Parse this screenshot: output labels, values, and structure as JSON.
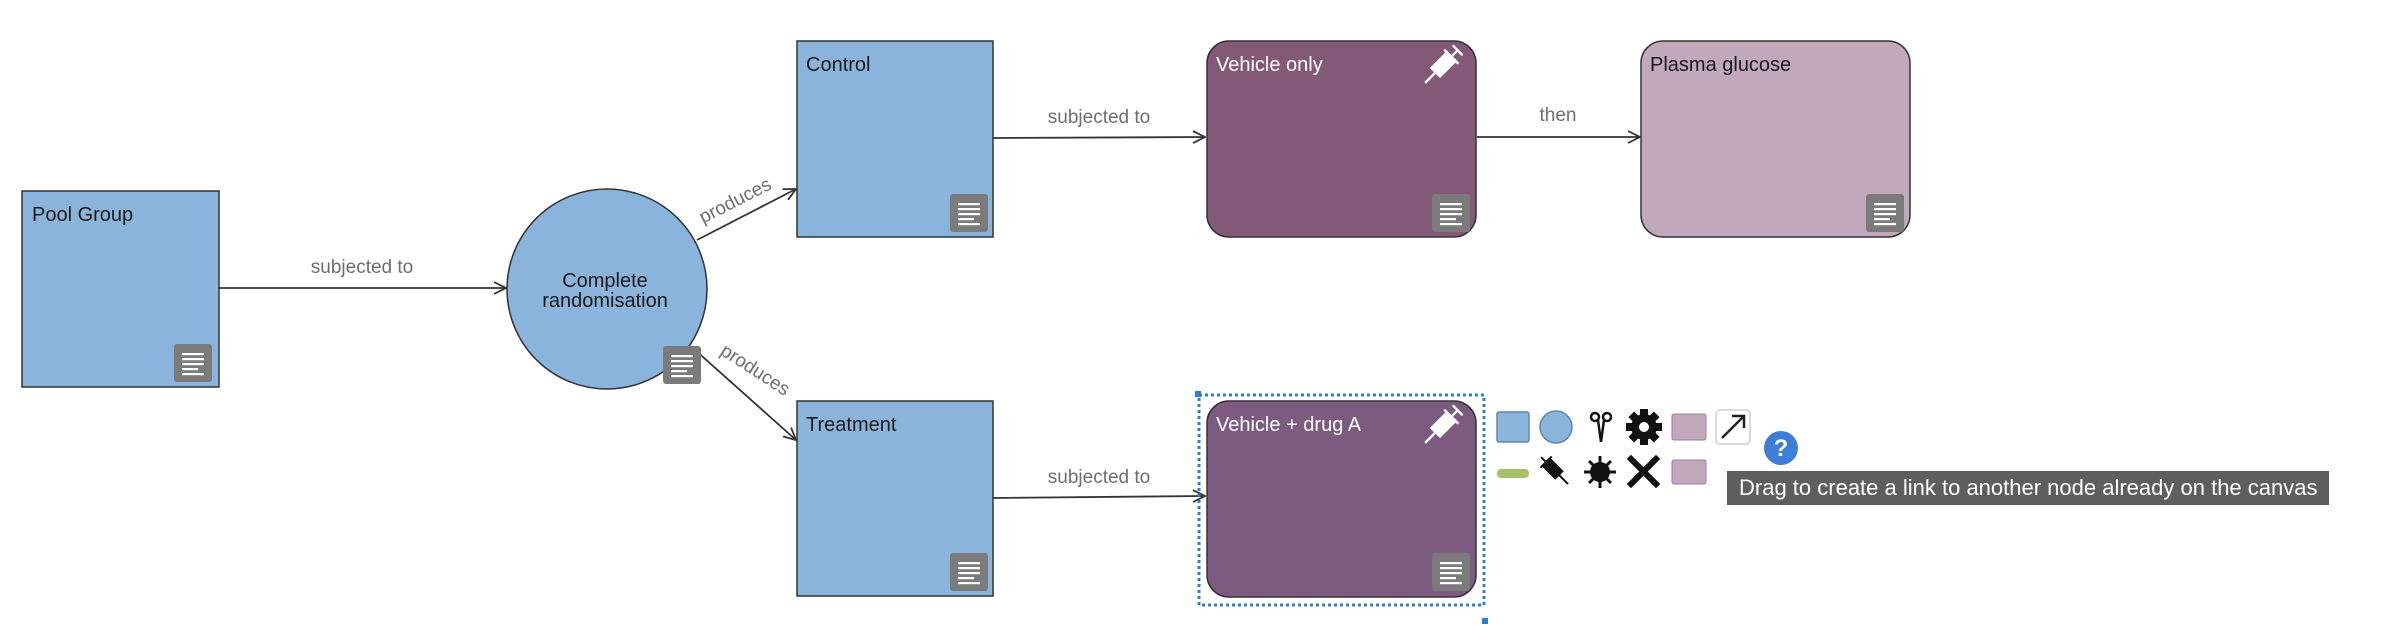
{
  "diagram": {
    "nodes": {
      "pool_group": {
        "title": "Pool Group"
      },
      "complete_randomisation": {
        "title_line1": "Complete",
        "title_line2": "randomisation"
      },
      "control": {
        "title": "Control"
      },
      "treatment": {
        "title": "Treatment"
      },
      "vehicle_only": {
        "title": "Vehicle only"
      },
      "vehicle_drug_a": {
        "title": "Vehicle + drug A"
      },
      "plasma_glucose": {
        "title": "Plasma glucose"
      }
    },
    "edges": {
      "pool_to_randomisation": "subjected to",
      "randomisation_to_control": "produces",
      "randomisation_to_treatment": "produces",
      "control_to_vehicle": "subjected to",
      "treatment_to_vehicle_drug": "subjected to",
      "vehicle_to_glucose": "then"
    }
  },
  "colors": {
    "group_node": "#8ab4dc",
    "intervention_top": "#845877",
    "intervention_bottom": "#7d5a80",
    "measurement": "#c1a8bd",
    "selection": "#2b7fd0"
  },
  "tooltip": {
    "text": "Drag to create a link to another node already on the canvas"
  }
}
